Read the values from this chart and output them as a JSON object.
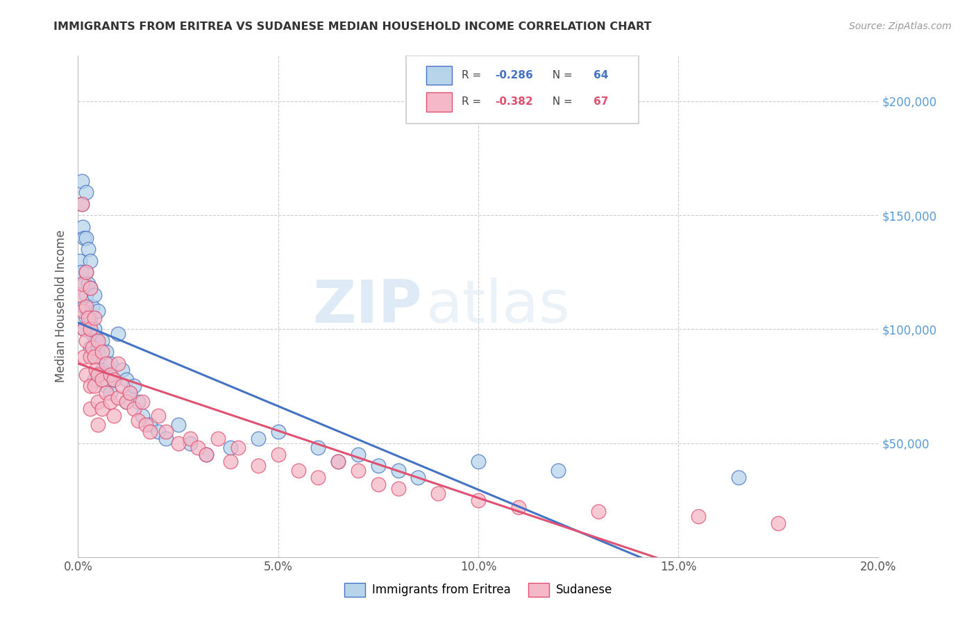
{
  "title": "IMMIGRANTS FROM ERITREA VS SUDANESE MEDIAN HOUSEHOLD INCOME CORRELATION CHART",
  "source": "Source: ZipAtlas.com",
  "ylabel": "Median Household Income",
  "r_eritrea": -0.286,
  "n_eritrea": 64,
  "r_sudanese": -0.382,
  "n_sudanese": 67,
  "color_eritrea": "#b8d4ea",
  "color_sudanese": "#f4b8c8",
  "line_color_eritrea": "#4472c4",
  "line_color_sudanese": "#e05070",
  "watermark_zip": "ZIP",
  "watermark_atlas": "atlas",
  "xlim": [
    0.0,
    0.2
  ],
  "ylim": [
    0,
    220000
  ],
  "yticks": [
    0,
    50000,
    100000,
    150000,
    200000
  ],
  "xticks": [
    0.0,
    0.05,
    0.1,
    0.15,
    0.2
  ],
  "eritrea_x": [
    0.0005,
    0.0008,
    0.001,
    0.001,
    0.0012,
    0.0015,
    0.0015,
    0.0015,
    0.0015,
    0.002,
    0.002,
    0.002,
    0.002,
    0.002,
    0.0025,
    0.0025,
    0.003,
    0.003,
    0.003,
    0.003,
    0.0035,
    0.0035,
    0.004,
    0.004,
    0.004,
    0.004,
    0.0045,
    0.005,
    0.005,
    0.005,
    0.0055,
    0.006,
    0.006,
    0.007,
    0.007,
    0.008,
    0.008,
    0.009,
    0.01,
    0.011,
    0.012,
    0.012,
    0.013,
    0.014,
    0.015,
    0.016,
    0.018,
    0.02,
    0.022,
    0.025,
    0.028,
    0.032,
    0.038,
    0.045,
    0.05,
    0.06,
    0.065,
    0.07,
    0.075,
    0.08,
    0.085,
    0.1,
    0.12,
    0.165
  ],
  "eritrea_y": [
    130000,
    125000,
    165000,
    155000,
    145000,
    140000,
    120000,
    110000,
    100000,
    160000,
    140000,
    125000,
    115000,
    105000,
    135000,
    120000,
    130000,
    118000,
    105000,
    92000,
    110000,
    98000,
    115000,
    100000,
    88000,
    78000,
    95000,
    108000,
    92000,
    80000,
    88000,
    95000,
    82000,
    90000,
    75000,
    85000,
    72000,
    78000,
    98000,
    82000,
    78000,
    68000,
    72000,
    75000,
    68000,
    62000,
    58000,
    55000,
    52000,
    58000,
    50000,
    45000,
    48000,
    52000,
    55000,
    48000,
    42000,
    45000,
    40000,
    38000,
    35000,
    42000,
    38000,
    35000
  ],
  "sudanese_x": [
    0.0005,
    0.001,
    0.001,
    0.0012,
    0.0015,
    0.0015,
    0.002,
    0.002,
    0.002,
    0.002,
    0.0025,
    0.003,
    0.003,
    0.003,
    0.003,
    0.003,
    0.0035,
    0.004,
    0.004,
    0.004,
    0.0045,
    0.005,
    0.005,
    0.005,
    0.005,
    0.006,
    0.006,
    0.006,
    0.007,
    0.007,
    0.008,
    0.008,
    0.009,
    0.009,
    0.01,
    0.01,
    0.011,
    0.012,
    0.013,
    0.014,
    0.015,
    0.016,
    0.017,
    0.018,
    0.02,
    0.022,
    0.025,
    0.028,
    0.03,
    0.032,
    0.035,
    0.038,
    0.04,
    0.045,
    0.05,
    0.055,
    0.06,
    0.065,
    0.07,
    0.075,
    0.08,
    0.09,
    0.1,
    0.11,
    0.13,
    0.155,
    0.175
  ],
  "sudanese_y": [
    115000,
    155000,
    120000,
    108000,
    100000,
    88000,
    125000,
    110000,
    95000,
    80000,
    105000,
    118000,
    100000,
    88000,
    75000,
    65000,
    92000,
    105000,
    88000,
    75000,
    82000,
    95000,
    80000,
    68000,
    58000,
    90000,
    78000,
    65000,
    85000,
    72000,
    80000,
    68000,
    78000,
    62000,
    85000,
    70000,
    75000,
    68000,
    72000,
    65000,
    60000,
    68000,
    58000,
    55000,
    62000,
    55000,
    50000,
    52000,
    48000,
    45000,
    52000,
    42000,
    48000,
    40000,
    45000,
    38000,
    35000,
    42000,
    38000,
    32000,
    30000,
    28000,
    25000,
    22000,
    20000,
    18000,
    15000
  ]
}
